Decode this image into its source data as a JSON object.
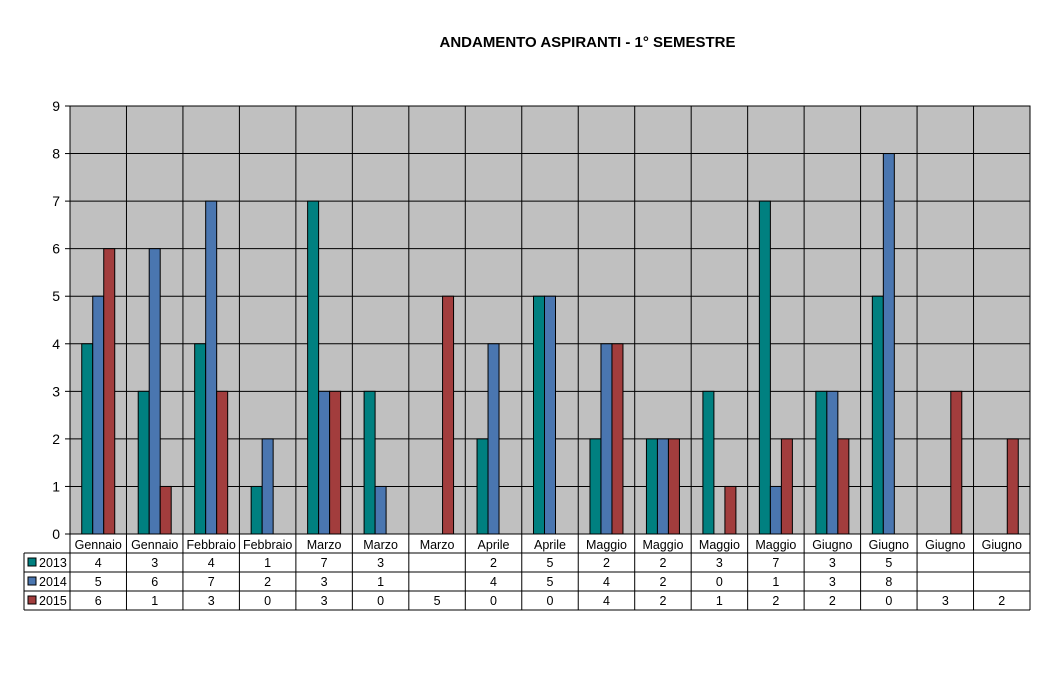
{
  "chart_data": {
    "type": "bar",
    "title": "ANDAMENTO ASPIRANTI - 1° SEMESTRE",
    "xlabel": "",
    "ylabel": "",
    "ylim": [
      0,
      9
    ],
    "yticks": [
      0,
      1,
      2,
      3,
      4,
      5,
      6,
      7,
      8,
      9
    ],
    "grid": true,
    "legend": "data-table",
    "categories": [
      "Gennaio",
      "Gennaio",
      "Febbraio",
      "Febbraio",
      "Marzo",
      "Marzo",
      "Marzo",
      "Aprile",
      "Aprile",
      "Maggio",
      "Maggio",
      "Maggio",
      "Maggio",
      "Giugno",
      "Giugno",
      "Giugno",
      "Giugno"
    ],
    "series": [
      {
        "name": "2013",
        "color": "#008080",
        "values": [
          4,
          3,
          4,
          1,
          7,
          3,
          null,
          2,
          5,
          2,
          2,
          3,
          7,
          3,
          5,
          null,
          null
        ]
      },
      {
        "name": "2014",
        "color": "#4a76b0",
        "values": [
          5,
          6,
          7,
          2,
          3,
          1,
          null,
          4,
          5,
          4,
          2,
          0,
          1,
          3,
          8,
          null,
          null
        ]
      },
      {
        "name": "2015",
        "color": "#a23d3d",
        "values": [
          6,
          1,
          3,
          0,
          3,
          0,
          5,
          0,
          0,
          4,
          2,
          1,
          2,
          2,
          0,
          3,
          2
        ]
      }
    ]
  }
}
